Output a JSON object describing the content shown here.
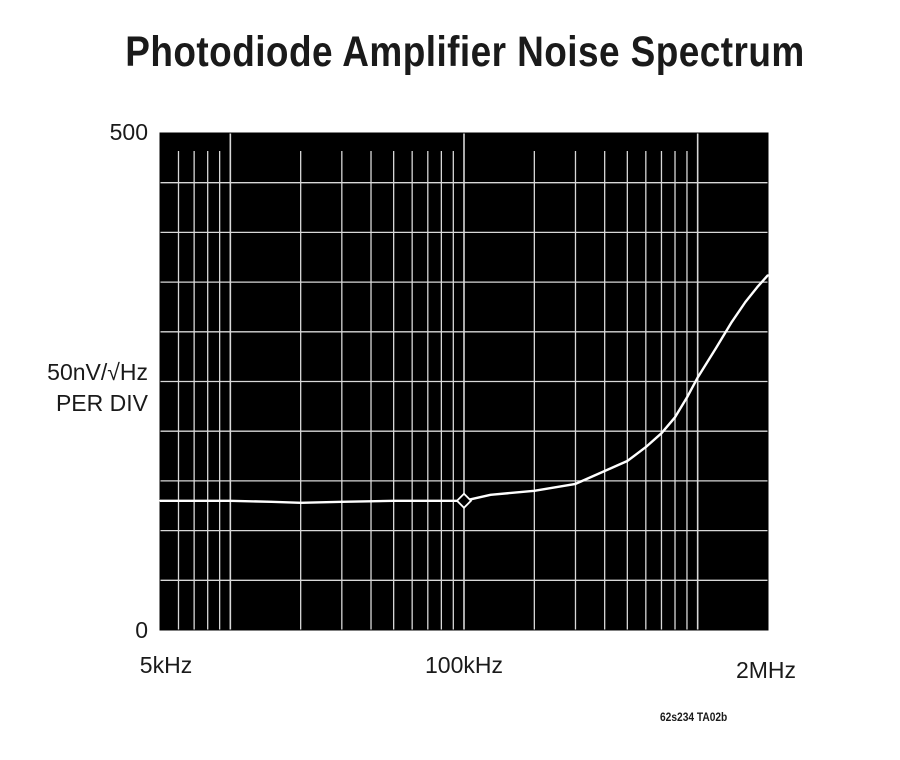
{
  "chart_data": {
    "type": "line",
    "title": "Photodiode Amplifier Noise Spectrum",
    "ylabel_line1": "50nV/√Hz",
    "ylabel_line2": "PER DIV",
    "xscale": "log",
    "xlim": [
      5000,
      2000000
    ],
    "ylim": [
      0,
      500
    ],
    "ytick_labels": [
      "500",
      "0"
    ],
    "xtick_labels": [
      "5kHz",
      "100kHz",
      "2MHz"
    ],
    "grid": true,
    "background_color": "#000000",
    "trace_color": "#ffffff",
    "series": [
      {
        "x": [
          5000,
          7000,
          10000,
          15000,
          20000,
          30000,
          50000,
          70000,
          100000,
          130000,
          200000,
          300000,
          400000,
          500000,
          600000,
          700000,
          800000,
          900000,
          1000000,
          1200000,
          1400000,
          1600000,
          1800000,
          2000000
        ],
        "values": [
          130,
          130,
          130,
          129,
          128,
          129,
          130,
          130,
          130,
          136,
          140,
          147,
          160,
          170,
          184,
          198,
          214,
          234,
          254,
          284,
          310,
          330,
          345,
          357
        ]
      }
    ],
    "marker": {
      "x": 100000,
      "y": 130,
      "shape": "diamond"
    }
  },
  "footnote": "62s234 TA02b"
}
